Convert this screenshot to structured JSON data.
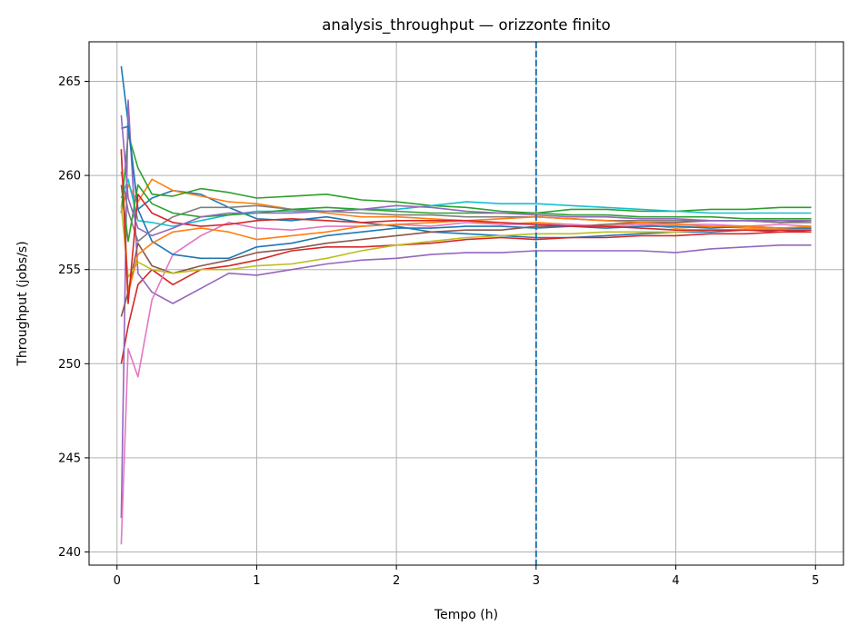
{
  "chart_data": {
    "type": "line",
    "title": "analysis_throughput — orizzonte finito",
    "xlabel": "Tempo (h)",
    "ylabel": "Throughput (jobs/s)",
    "xlim": [
      -0.2,
      5.2
    ],
    "ylim": [
      239.3,
      267.1
    ],
    "xticks": [
      0,
      1,
      2,
      3,
      4,
      5
    ],
    "yticks": [
      240,
      245,
      250,
      255,
      260,
      265
    ],
    "grid": true,
    "vline": {
      "x": 3,
      "style": "dashed",
      "color": "#1f77b4"
    },
    "x": [
      0.03,
      0.08,
      0.15,
      0.25,
      0.4,
      0.6,
      0.8,
      1.0,
      1.25,
      1.5,
      1.75,
      2.0,
      2.25,
      2.5,
      2.75,
      3.0,
      3.25,
      3.5,
      3.75,
      4.0,
      4.25,
      4.5,
      4.75,
      4.97
    ],
    "series": [
      {
        "color": "#1f77b4",
        "values": [
          265.8,
          262.8,
          258.2,
          258.8,
          259.2,
          259.0,
          258.3,
          257.7,
          257.6,
          257.8,
          257.5,
          257.3,
          257.0,
          256.9,
          256.8,
          256.7,
          256.7,
          256.8,
          256.9,
          257.0,
          257.0,
          257.1,
          257.0,
          257.1
        ]
      },
      {
        "color": "#ff7f0e",
        "values": [
          258.0,
          259.5,
          258.6,
          259.8,
          259.2,
          258.9,
          258.6,
          258.5,
          258.2,
          258.0,
          257.8,
          257.8,
          257.7,
          257.6,
          257.4,
          257.5,
          257.4,
          257.3,
          257.4,
          257.2,
          257.3,
          257.2,
          257.2,
          257.2
        ]
      },
      {
        "color": "#2ca02c",
        "values": [
          258.0,
          262.2,
          260.4,
          259.0,
          258.9,
          259.3,
          259.1,
          258.8,
          258.9,
          259.0,
          258.7,
          258.6,
          258.4,
          258.3,
          258.1,
          258.0,
          258.2,
          258.2,
          258.1,
          258.1,
          258.2,
          258.2,
          258.3,
          258.3
        ]
      },
      {
        "color": "#d62728",
        "values": [
          250.0,
          252.0,
          254.2,
          255.0,
          254.2,
          255.0,
          255.2,
          255.5,
          256.0,
          256.2,
          256.2,
          256.3,
          256.4,
          256.6,
          256.7,
          256.6,
          256.7,
          256.7,
          256.8,
          256.8,
          256.9,
          256.9,
          257.0,
          257.0
        ]
      },
      {
        "color": "#9467bd",
        "values": [
          241.8,
          264.0,
          254.8,
          253.8,
          253.2,
          254.0,
          254.8,
          254.7,
          255.0,
          255.3,
          255.5,
          255.6,
          255.8,
          255.9,
          255.9,
          256.0,
          256.0,
          256.0,
          256.0,
          255.9,
          256.1,
          256.2,
          256.3,
          256.3
        ]
      },
      {
        "color": "#8c564b",
        "values": [
          252.5,
          253.8,
          256.4,
          255.2,
          254.8,
          255.2,
          255.5,
          255.9,
          256.1,
          256.4,
          256.6,
          256.8,
          257.0,
          257.1,
          257.1,
          257.3,
          257.3,
          257.4,
          257.5,
          257.5,
          257.6,
          257.6,
          257.5,
          257.6
        ]
      },
      {
        "color": "#e377c2",
        "values": [
          240.4,
          250.8,
          249.3,
          253.4,
          255.8,
          256.8,
          257.5,
          257.2,
          257.1,
          257.3,
          257.3,
          257.4,
          257.3,
          257.5,
          257.4,
          257.4,
          257.4,
          257.3,
          257.4,
          257.4,
          257.4,
          257.3,
          257.4,
          257.3
        ]
      },
      {
        "color": "#7f7f7f",
        "values": [
          260.2,
          258.1,
          256.5,
          257.1,
          257.8,
          258.3,
          258.3,
          258.4,
          258.2,
          258.1,
          258.0,
          257.9,
          257.9,
          257.8,
          257.8,
          257.8,
          257.7,
          257.6,
          257.6,
          257.6,
          257.6,
          257.6,
          257.5,
          257.5
        ]
      },
      {
        "color": "#bcbd22",
        "values": [
          258.4,
          254.6,
          255.4,
          255.0,
          254.8,
          255.0,
          255.0,
          255.2,
          255.3,
          255.6,
          256.0,
          256.3,
          256.5,
          256.7,
          256.8,
          256.9,
          256.9,
          257.0,
          257.0,
          257.0,
          257.1,
          257.1,
          257.1,
          257.1
        ]
      },
      {
        "color": "#17becf",
        "values": [
          258.8,
          259.8,
          257.6,
          257.5,
          257.3,
          257.6,
          257.9,
          258.1,
          258.1,
          258.1,
          258.2,
          258.2,
          258.4,
          258.6,
          258.5,
          258.5,
          258.4,
          258.3,
          258.2,
          258.1,
          258.0,
          258.0,
          258.0,
          258.0
        ]
      },
      {
        "color": "#1f77b4",
        "values": [
          262.5,
          262.6,
          258.2,
          256.5,
          255.8,
          255.6,
          255.6,
          256.2,
          256.4,
          256.8,
          257.0,
          257.2,
          257.2,
          257.3,
          257.3,
          257.2,
          257.3,
          257.2,
          257.3,
          257.3,
          257.2,
          257.3,
          257.2,
          257.2
        ]
      },
      {
        "color": "#ff7f0e",
        "values": [
          261.3,
          253.7,
          255.8,
          256.4,
          257.0,
          257.2,
          257.0,
          256.6,
          256.8,
          257.0,
          257.3,
          257.4,
          257.5,
          257.6,
          257.7,
          257.8,
          257.7,
          257.6,
          257.5,
          257.4,
          257.3,
          257.3,
          257.2,
          257.3
        ]
      },
      {
        "color": "#2ca02c",
        "values": [
          259.5,
          256.5,
          259.5,
          258.5,
          258.0,
          257.8,
          257.9,
          258.0,
          258.2,
          258.3,
          258.2,
          258.1,
          258.0,
          258.0,
          258.0,
          258.0,
          257.9,
          257.9,
          257.8,
          257.8,
          257.8,
          257.7,
          257.7,
          257.7
        ]
      },
      {
        "color": "#d62728",
        "values": [
          261.4,
          253.2,
          259.0,
          258.0,
          257.5,
          257.3,
          257.4,
          257.6,
          257.7,
          257.6,
          257.5,
          257.6,
          257.6,
          257.6,
          257.5,
          257.4,
          257.3,
          257.3,
          257.2,
          257.1,
          257.1,
          257.1,
          257.1,
          257.1
        ]
      },
      {
        "color": "#9467bd",
        "values": [
          263.2,
          258.8,
          257.2,
          256.8,
          257.2,
          257.8,
          258.0,
          258.0,
          258.0,
          258.1,
          258.2,
          258.4,
          258.3,
          258.1,
          258.0,
          257.9,
          257.8,
          257.8,
          257.7,
          257.7,
          257.6,
          257.6,
          257.6,
          257.6
        ]
      }
    ]
  }
}
